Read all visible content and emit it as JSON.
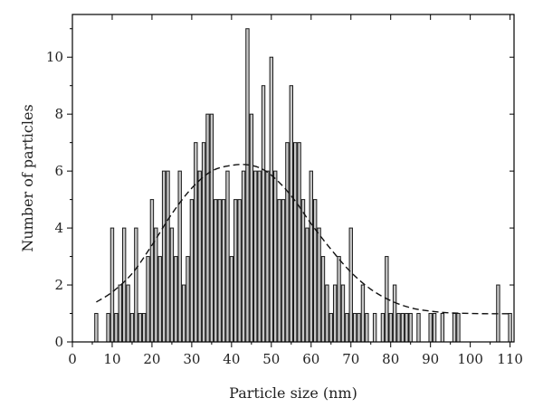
{
  "chart_data": {
    "type": "bar",
    "xlabel": "Particle size (nm)",
    "ylabel": "Number of particles",
    "xlim": [
      0,
      111
    ],
    "ylim": [
      0,
      11.5
    ],
    "xticks": [
      0,
      10,
      20,
      30,
      40,
      50,
      60,
      70,
      80,
      90,
      100,
      110
    ],
    "yticks": [
      0,
      2,
      4,
      6,
      8,
      10
    ],
    "grid": false,
    "bar_width": 1,
    "bars": [
      {
        "x": 6,
        "y": 1
      },
      {
        "x": 9,
        "y": 1
      },
      {
        "x": 10,
        "y": 4
      },
      {
        "x": 11,
        "y": 1
      },
      {
        "x": 12,
        "y": 2
      },
      {
        "x": 13,
        "y": 4
      },
      {
        "x": 14,
        "y": 2
      },
      {
        "x": 15,
        "y": 1
      },
      {
        "x": 16,
        "y": 4
      },
      {
        "x": 17,
        "y": 1
      },
      {
        "x": 18,
        "y": 1
      },
      {
        "x": 19,
        "y": 3
      },
      {
        "x": 20,
        "y": 5
      },
      {
        "x": 21,
        "y": 4
      },
      {
        "x": 22,
        "y": 3
      },
      {
        "x": 23,
        "y": 6
      },
      {
        "x": 24,
        "y": 6
      },
      {
        "x": 25,
        "y": 4
      },
      {
        "x": 26,
        "y": 3
      },
      {
        "x": 27,
        "y": 6
      },
      {
        "x": 28,
        "y": 2
      },
      {
        "x": 29,
        "y": 3
      },
      {
        "x": 30,
        "y": 5
      },
      {
        "x": 31,
        "y": 7
      },
      {
        "x": 32,
        "y": 6
      },
      {
        "x": 33,
        "y": 7
      },
      {
        "x": 34,
        "y": 8
      },
      {
        "x": 35,
        "y": 8
      },
      {
        "x": 36,
        "y": 5
      },
      {
        "x": 37,
        "y": 5
      },
      {
        "x": 38,
        "y": 5
      },
      {
        "x": 39,
        "y": 6
      },
      {
        "x": 40,
        "y": 3
      },
      {
        "x": 41,
        "y": 5
      },
      {
        "x": 42,
        "y": 5
      },
      {
        "x": 43,
        "y": 6
      },
      {
        "x": 44,
        "y": 11
      },
      {
        "x": 45,
        "y": 8
      },
      {
        "x": 46,
        "y": 6
      },
      {
        "x": 47,
        "y": 6
      },
      {
        "x": 48,
        "y": 9
      },
      {
        "x": 49,
        "y": 6
      },
      {
        "x": 50,
        "y": 10
      },
      {
        "x": 51,
        "y": 6
      },
      {
        "x": 52,
        "y": 5
      },
      {
        "x": 53,
        "y": 5
      },
      {
        "x": 54,
        "y": 7
      },
      {
        "x": 55,
        "y": 9
      },
      {
        "x": 56,
        "y": 7
      },
      {
        "x": 57,
        "y": 7
      },
      {
        "x": 58,
        "y": 5
      },
      {
        "x": 59,
        "y": 4
      },
      {
        "x": 60,
        "y": 6
      },
      {
        "x": 61,
        "y": 5
      },
      {
        "x": 62,
        "y": 4
      },
      {
        "x": 63,
        "y": 3
      },
      {
        "x": 64,
        "y": 2
      },
      {
        "x": 65,
        "y": 1
      },
      {
        "x": 66,
        "y": 2
      },
      {
        "x": 67,
        "y": 3
      },
      {
        "x": 68,
        "y": 2
      },
      {
        "x": 69,
        "y": 1
      },
      {
        "x": 70,
        "y": 4
      },
      {
        "x": 71,
        "y": 1
      },
      {
        "x": 72,
        "y": 1
      },
      {
        "x": 73,
        "y": 2
      },
      {
        "x": 74,
        "y": 1
      },
      {
        "x": 76,
        "y": 1
      },
      {
        "x": 78,
        "y": 1
      },
      {
        "x": 79,
        "y": 3
      },
      {
        "x": 80,
        "y": 1
      },
      {
        "x": 81,
        "y": 2
      },
      {
        "x": 82,
        "y": 1
      },
      {
        "x": 83,
        "y": 1
      },
      {
        "x": 84,
        "y": 1
      },
      {
        "x": 85,
        "y": 1
      },
      {
        "x": 87,
        "y": 1
      },
      {
        "x": 90,
        "y": 1
      },
      {
        "x": 91,
        "y": 1
      },
      {
        "x": 93,
        "y": 1
      },
      {
        "x": 96,
        "y": 1
      },
      {
        "x": 97,
        "y": 1
      },
      {
        "x": 107,
        "y": 2
      },
      {
        "x": 110,
        "y": 1
      }
    ],
    "fit_curve": {
      "style": "dashed",
      "points": [
        [
          6,
          1.4
        ],
        [
          10,
          1.75
        ],
        [
          15,
          2.4
        ],
        [
          20,
          3.4
        ],
        [
          25,
          4.5
        ],
        [
          30,
          5.4
        ],
        [
          35,
          6.0
        ],
        [
          40,
          6.2
        ],
        [
          44,
          6.22
        ],
        [
          48,
          6.05
        ],
        [
          52,
          5.6
        ],
        [
          56,
          4.95
        ],
        [
          60,
          4.15
        ],
        [
          65,
          3.25
        ],
        [
          70,
          2.45
        ],
        [
          75,
          1.85
        ],
        [
          80,
          1.45
        ],
        [
          85,
          1.2
        ],
        [
          90,
          1.08
        ],
        [
          95,
          1.02
        ],
        [
          100,
          1.0
        ],
        [
          105,
          0.99
        ],
        [
          110,
          0.99
        ]
      ]
    }
  }
}
